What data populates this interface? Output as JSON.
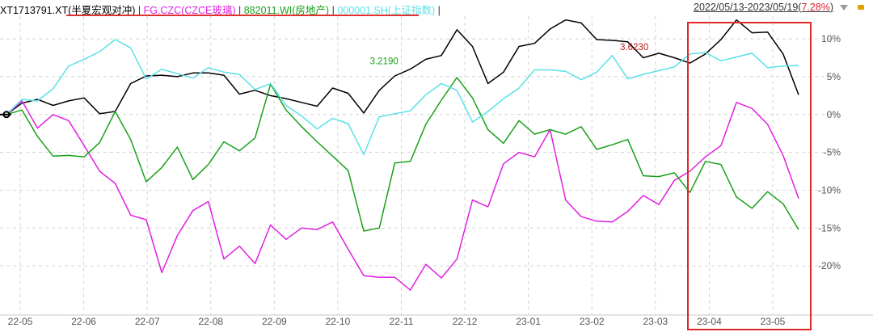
{
  "legend": {
    "items": [
      {
        "label": "XT1713791.XT(半夏宏观对冲)",
        "color": "#000000"
      },
      {
        "label": "FG.CZC(CZCE玻璃)",
        "color": "#e020e0"
      },
      {
        "label": "882011.WI(房地产)",
        "color": "#19a019"
      },
      {
        "label": "000001.SH(上证指数)",
        "color": "#5ae0e8"
      }
    ],
    "separator": "|"
  },
  "date_range": {
    "text": "2022/05/13-2023/05/19",
    "pct": "7.28%"
  },
  "icons": {
    "dropdown": "dropdown-triangle-icon",
    "lock": "lock-icon"
  },
  "highlight": {
    "color": "#e02828"
  },
  "chart_data": {
    "type": "line",
    "x_tick_labels": [
      "22-05",
      "22-06",
      "22-07",
      "22-08",
      "22-09",
      "22-10",
      "22-11",
      "22-12",
      "23-01",
      "23-02",
      "23-03",
      "23-04",
      "23-05"
    ],
    "y_tick_labels": [
      "10%",
      "5%",
      "0%",
      "-5%",
      "-10%",
      "-15%",
      "-20%"
    ],
    "y_ticks": [
      10,
      5,
      0,
      -5,
      -10,
      -15,
      -20
    ],
    "ylim": [
      -26.5,
      13
    ],
    "grid": "dashed",
    "annotations": [
      {
        "text": "3.6230",
        "series": 0,
        "index": 42,
        "color": "#c01818"
      },
      {
        "text": "3.2190",
        "series": 0,
        "index": 26,
        "color": "#19a019"
      }
    ],
    "highlight_range": [
      53,
      59
    ],
    "series": [
      {
        "name": "XT1713791.XT(半夏宏观对冲)",
        "color": "#000000",
        "values": [
          0,
          1.5,
          2,
          1.2,
          1.8,
          2.2,
          0.1,
          0.4,
          4.1,
          5.1,
          5.2,
          5.0,
          5.5,
          5.5,
          5.2,
          2.7,
          3.2,
          2.5,
          2.1,
          1.6,
          1.1,
          3.5,
          2.8,
          0.2,
          3.2,
          5.1,
          6.0,
          7.3,
          7.8,
          11.2,
          9.0,
          4.1,
          5.6,
          9.0,
          9.4,
          11.3,
          12.5,
          12.1,
          9.9,
          9.8,
          9.6,
          7.5,
          8.1,
          7.5,
          6.8,
          8.0,
          9.9,
          12.5,
          10.8,
          10.9,
          8.0,
          2.6
        ]
      },
      {
        "name": "FG.CZC(CZCE玻璃)",
        "color": "#e020e0",
        "values": [
          0,
          1.8,
          -1.8,
          0,
          -0.8,
          -4.1,
          -7.5,
          -9.1,
          -13.3,
          -13.9,
          -20.9,
          -16.0,
          -12.7,
          -11.5,
          -19.1,
          -17.4,
          -19.7,
          -14.6,
          -16.5,
          -15.0,
          -15.2,
          -14.2,
          -17.8,
          -21.3,
          -21.5,
          -21.5,
          -23.2,
          -19.8,
          -21.6,
          -19.1,
          -11.3,
          -12.2,
          -6.5,
          -5.0,
          -5.6,
          -2.0,
          -11.3,
          -13.5,
          -14.1,
          -14.2,
          -12.8,
          -10.7,
          -11.9,
          -8.7,
          -7.5,
          -5.6,
          -4.1,
          1.6,
          0.8,
          -1.3,
          -5.4,
          -11.1
        ]
      },
      {
        "name": "882011.WI(房地产)",
        "color": "#19a019",
        "values": [
          0,
          0.6,
          -2.9,
          -5.5,
          -5.4,
          -5.6,
          -3.7,
          0.4,
          -3.3,
          -8.9,
          -7.0,
          -4.3,
          -8.6,
          -6.6,
          -3.6,
          -4.8,
          -3.1,
          4.0,
          0.6,
          -1.6,
          -3.6,
          -5.5,
          -7.4,
          -15.4,
          -15.0,
          -6.4,
          -6.2,
          -1.3,
          1.9,
          4.9,
          2.2,
          -2.0,
          -3.8,
          -0.8,
          -2.6,
          -2.0,
          -2.6,
          -1.6,
          -4.6,
          -4.0,
          -3.3,
          -8.1,
          -8.2,
          -7.7,
          -10.3,
          -6.2,
          -6.6,
          -10.9,
          -12.4,
          -10.2,
          -11.8,
          -15.2
        ]
      },
      {
        "name": "000001.SH(上证指数)",
        "color": "#5ae0e8",
        "values": [
          0,
          2.0,
          1.8,
          3.4,
          6.4,
          7.3,
          8.3,
          9.9,
          8.8,
          4.7,
          6.0,
          5.4,
          4.8,
          6.2,
          5.6,
          5.3,
          3.3,
          4.1,
          1.2,
          -0.2,
          -1.9,
          -0.5,
          -1.2,
          -5.3,
          -0.3,
          0.1,
          0.5,
          2.6,
          4.1,
          3.2,
          -1.0,
          0.4,
          2.1,
          3.5,
          5.9,
          5.9,
          5.7,
          4.6,
          5.6,
          7.8,
          4.7,
          5.3,
          5.8,
          6.3,
          8.0,
          8.2,
          7.1,
          7.6,
          8.1,
          6.2,
          6.4,
          6.5
        ]
      }
    ]
  }
}
